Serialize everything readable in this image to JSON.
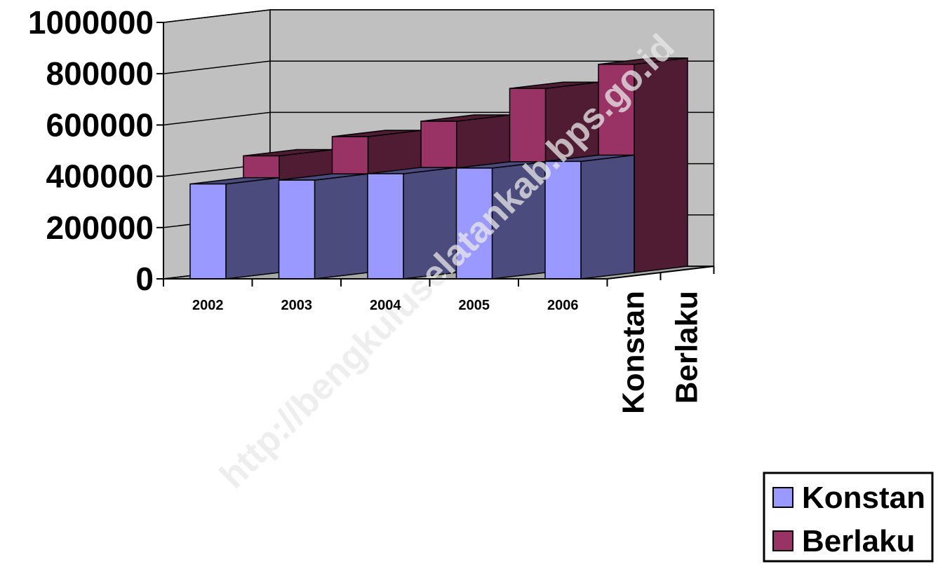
{
  "chart_data": {
    "type": "bar",
    "subtype": "3d-column",
    "categories": [
      "2002",
      "2003",
      "2004",
      "2005",
      "2006"
    ],
    "series": [
      {
        "name": "Konstan",
        "values": [
          370000,
          385000,
          410000,
          432000,
          458000
        ],
        "color": "#9999ff",
        "side_color": "#4b4b7d"
      },
      {
        "name": "Berlaku",
        "values": [
          455000,
          530000,
          590000,
          718000,
          812000
        ],
        "color": "#993366",
        "side_color": "#4f1c33"
      }
    ],
    "yticks": [
      "0",
      "200000",
      "400000",
      "600000",
      "800000",
      "1000000"
    ],
    "ylim": [
      0,
      1000000
    ],
    "grid": true,
    "wall_color": "#c0c0c0",
    "legend": {
      "position": "right",
      "entries": [
        "Konstan",
        "Berlaku"
      ]
    },
    "depth_labels": [
      "Konstan",
      "Berlaku"
    ]
  },
  "watermark": "http://bengkuluselatankab.bps.go.id"
}
